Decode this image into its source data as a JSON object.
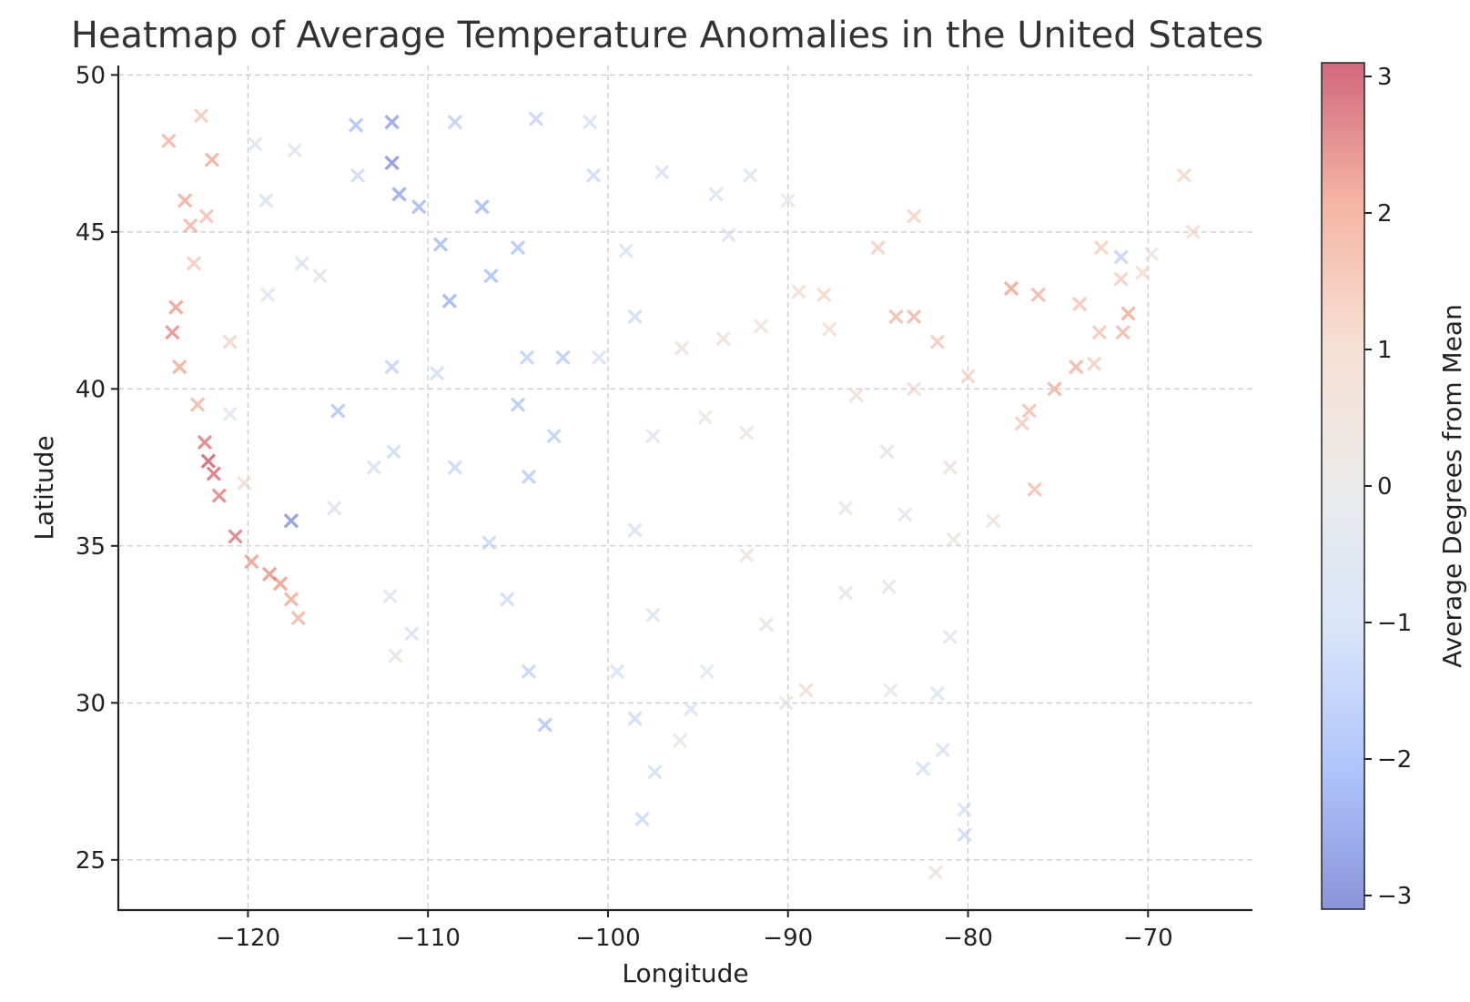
{
  "chart_data": {
    "type": "scatter",
    "marker": "x",
    "title": "Heatmap of Average Temperature Anomalies in the United States",
    "xlabel": "Longitude",
    "ylabel": "Latitude",
    "xlim": [
      -127.2,
      -64.2
    ],
    "ylim": [
      23.4,
      50.3
    ],
    "xticks": [
      -120,
      -110,
      -100,
      -90,
      -80,
      -70
    ],
    "xtick_labels": [
      "−120",
      "−110",
      "−100",
      "−90",
      "−80",
      "−70"
    ],
    "yticks": [
      25,
      30,
      35,
      40,
      45,
      50
    ],
    "ytick_labels": [
      "25",
      "30",
      "35",
      "40",
      "45",
      "50"
    ],
    "grid": true,
    "colormap": "coolwarm",
    "alpha": 0.6,
    "colorbar": {
      "label": "Average Degrees from Mean",
      "range": [
        -3.1,
        3.1
      ],
      "ticks": [
        -3,
        -2,
        -1,
        0,
        1,
        2,
        3
      ],
      "tick_labels": [
        "−3",
        "−2",
        "−1",
        "0",
        "1",
        "2",
        "3"
      ],
      "colors": [
        "#3b4cc0",
        "#7b9ff9",
        "#c0d4f5",
        "#dddddd",
        "#f2cbb7",
        "#ee8468",
        "#b40426"
      ]
    },
    "points": [
      {
        "lon": -124.4,
        "lat": 47.9,
        "value": 1.8
      },
      {
        "lon": -122.6,
        "lat": 48.7,
        "value": 1.4
      },
      {
        "lon": -122.0,
        "lat": 47.3,
        "value": 2.0
      },
      {
        "lon": -123.5,
        "lat": 46.0,
        "value": 2.0
      },
      {
        "lon": -123.2,
        "lat": 45.2,
        "value": 1.8
      },
      {
        "lon": -122.3,
        "lat": 45.5,
        "value": 1.6
      },
      {
        "lon": -123.0,
        "lat": 44.0,
        "value": 1.4
      },
      {
        "lon": -124.0,
        "lat": 42.6,
        "value": 2.2
      },
      {
        "lon": -124.2,
        "lat": 41.8,
        "value": 2.4
      },
      {
        "lon": -123.8,
        "lat": 40.7,
        "value": 2.0
      },
      {
        "lon": -122.8,
        "lat": 39.5,
        "value": 1.8
      },
      {
        "lon": -122.4,
        "lat": 38.3,
        "value": 2.6
      },
      {
        "lon": -122.2,
        "lat": 37.7,
        "value": 2.9
      },
      {
        "lon": -121.9,
        "lat": 37.3,
        "value": 2.7
      },
      {
        "lon": -121.6,
        "lat": 36.6,
        "value": 2.5
      },
      {
        "lon": -120.7,
        "lat": 35.3,
        "value": 2.6
      },
      {
        "lon": -119.8,
        "lat": 34.5,
        "value": 2.2
      },
      {
        "lon": -118.8,
        "lat": 34.1,
        "value": 2.3
      },
      {
        "lon": -118.2,
        "lat": 33.8,
        "value": 2.2
      },
      {
        "lon": -117.6,
        "lat": 33.3,
        "value": 2.0
      },
      {
        "lon": -117.2,
        "lat": 32.7,
        "value": 1.8
      },
      {
        "lon": -121.0,
        "lat": 41.5,
        "value": 1.2
      },
      {
        "lon": -121.0,
        "lat": 39.2,
        "value": -0.3
      },
      {
        "lon": -120.2,
        "lat": 37.0,
        "value": 1.0
      },
      {
        "lon": -119.6,
        "lat": 47.8,
        "value": -0.6
      },
      {
        "lon": -119.0,
        "lat": 46.0,
        "value": -0.8
      },
      {
        "lon": -117.4,
        "lat": 47.6,
        "value": -0.5
      },
      {
        "lon": -117.6,
        "lat": 35.8,
        "value": -2.8
      },
      {
        "lon": -118.9,
        "lat": 43.0,
        "value": -0.2
      },
      {
        "lon": -117.0,
        "lat": 44.0,
        "value": -0.9
      },
      {
        "lon": -116.0,
        "lat": 43.6,
        "value": -0.4
      },
      {
        "lon": -115.0,
        "lat": 39.3,
        "value": -1.8
      },
      {
        "lon": -115.2,
        "lat": 36.2,
        "value": -0.7
      },
      {
        "lon": -114.0,
        "lat": 48.4,
        "value": -1.9
      },
      {
        "lon": -113.9,
        "lat": 46.8,
        "value": -1.2
      },
      {
        "lon": -112.0,
        "lat": 48.5,
        "value": -2.5
      },
      {
        "lon": -112.0,
        "lat": 47.2,
        "value": -2.8
      },
      {
        "lon": -111.6,
        "lat": 46.2,
        "value": -2.4
      },
      {
        "lon": -110.5,
        "lat": 45.8,
        "value": -2.1
      },
      {
        "lon": -109.3,
        "lat": 44.6,
        "value": -2.0
      },
      {
        "lon": -108.8,
        "lat": 42.8,
        "value": -2.2
      },
      {
        "lon": -107.0,
        "lat": 45.8,
        "value": -2.1
      },
      {
        "lon": -106.5,
        "lat": 43.6,
        "value": -1.9
      },
      {
        "lon": -105.0,
        "lat": 44.5,
        "value": -1.8
      },
      {
        "lon": -104.5,
        "lat": 41.0,
        "value": -1.5
      },
      {
        "lon": -102.5,
        "lat": 41.0,
        "value": -1.6
      },
      {
        "lon": -105.0,
        "lat": 39.5,
        "value": -1.7
      },
      {
        "lon": -104.4,
        "lat": 37.2,
        "value": -1.6
      },
      {
        "lon": -103.0,
        "lat": 38.5,
        "value": -1.5
      },
      {
        "lon": -106.6,
        "lat": 35.1,
        "value": -1.3
      },
      {
        "lon": -105.6,
        "lat": 33.3,
        "value": -1.2
      },
      {
        "lon": -103.5,
        "lat": 29.3,
        "value": -1.8
      },
      {
        "lon": -104.4,
        "lat": 31.0,
        "value": -1.4
      },
      {
        "lon": -110.9,
        "lat": 32.2,
        "value": -0.9
      },
      {
        "lon": -111.8,
        "lat": 31.5,
        "value": 0.4
      },
      {
        "lon": -112.1,
        "lat": 33.4,
        "value": -0.5
      },
      {
        "lon": -112.0,
        "lat": 40.7,
        "value": -1.4
      },
      {
        "lon": -111.9,
        "lat": 38.0,
        "value": -1.2
      },
      {
        "lon": -113.0,
        "lat": 37.5,
        "value": -1.0
      },
      {
        "lon": -109.5,
        "lat": 40.5,
        "value": -1.1
      },
      {
        "lon": -108.5,
        "lat": 37.5,
        "value": -1.3
      },
      {
        "lon": -100.8,
        "lat": 46.8,
        "value": -1.2
      },
      {
        "lon": -99.0,
        "lat": 44.4,
        "value": -0.9
      },
      {
        "lon": -98.5,
        "lat": 42.3,
        "value": -1.2
      },
      {
        "lon": -100.5,
        "lat": 41.0,
        "value": -1.0
      },
      {
        "lon": -97.5,
        "lat": 38.5,
        "value": -0.5
      },
      {
        "lon": -98.5,
        "lat": 35.5,
        "value": -0.8
      },
      {
        "lon": -97.5,
        "lat": 32.8,
        "value": -0.6
      },
      {
        "lon": -99.5,
        "lat": 31.0,
        "value": -1.0
      },
      {
        "lon": -98.5,
        "lat": 29.5,
        "value": -1.2
      },
      {
        "lon": -97.4,
        "lat": 27.8,
        "value": -1.1
      },
      {
        "lon": -98.1,
        "lat": 26.3,
        "value": -1.3
      },
      {
        "lon": -95.4,
        "lat": 29.8,
        "value": -0.6
      },
      {
        "lon": -96.0,
        "lat": 28.8,
        "value": 0.2
      },
      {
        "lon": -94.5,
        "lat": 31.0,
        "value": -0.3
      },
      {
        "lon": -93.3,
        "lat": 44.9,
        "value": -0.7
      },
      {
        "lon": -92.1,
        "lat": 46.8,
        "value": -0.5
      },
      {
        "lon": -94.0,
        "lat": 46.2,
        "value": -0.6
      },
      {
        "lon": -95.9,
        "lat": 41.3,
        "value": 0.5
      },
      {
        "lon": -93.6,
        "lat": 41.6,
        "value": 0.7
      },
      {
        "lon": -91.5,
        "lat": 42.0,
        "value": 0.6
      },
      {
        "lon": -94.6,
        "lat": 39.1,
        "value": 0.2
      },
      {
        "lon": -92.3,
        "lat": 38.6,
        "value": 0.3
      },
      {
        "lon": -92.3,
        "lat": 34.7,
        "value": 0.5
      },
      {
        "lon": -91.2,
        "lat": 32.5,
        "value": 0.3
      },
      {
        "lon": -90.1,
        "lat": 30.0,
        "value": 0.2
      },
      {
        "lon": -89.0,
        "lat": 30.4,
        "value": 0.8
      },
      {
        "lon": -87.7,
        "lat": 41.9,
        "value": 1.0
      },
      {
        "lon": -88.0,
        "lat": 43.0,
        "value": 1.1
      },
      {
        "lon": -89.4,
        "lat": 43.1,
        "value": 1.0
      },
      {
        "lon": -86.2,
        "lat": 39.8,
        "value": 0.8
      },
      {
        "lon": -86.8,
        "lat": 36.2,
        "value": 0.3
      },
      {
        "lon": -86.8,
        "lat": 33.5,
        "value": -0.2
      },
      {
        "lon": -84.4,
        "lat": 33.7,
        "value": -0.4
      },
      {
        "lon": -84.3,
        "lat": 30.4,
        "value": 0.1
      },
      {
        "lon": -85.0,
        "lat": 44.5,
        "value": 1.3
      },
      {
        "lon": -84.0,
        "lat": 42.3,
        "value": 1.7
      },
      {
        "lon": -83.0,
        "lat": 42.3,
        "value": 1.8
      },
      {
        "lon": -83.0,
        "lat": 40.0,
        "value": 0.9
      },
      {
        "lon": -84.5,
        "lat": 38.0,
        "value": 0.4
      },
      {
        "lon": -83.5,
        "lat": 36.0,
        "value": -0.3
      },
      {
        "lon": -81.7,
        "lat": 41.5,
        "value": 1.4
      },
      {
        "lon": -80.0,
        "lat": 40.4,
        "value": 1.2
      },
      {
        "lon": -81.0,
        "lat": 37.5,
        "value": 0.4
      },
      {
        "lon": -80.8,
        "lat": 35.2,
        "value": 0.2
      },
      {
        "lon": -81.0,
        "lat": 32.1,
        "value": -0.3
      },
      {
        "lon": -81.7,
        "lat": 30.3,
        "value": -0.6
      },
      {
        "lon": -81.4,
        "lat": 28.5,
        "value": -0.8
      },
      {
        "lon": -82.5,
        "lat": 27.9,
        "value": -1.0
      },
      {
        "lon": -80.2,
        "lat": 25.8,
        "value": -1.2
      },
      {
        "lon": -81.8,
        "lat": 24.6,
        "value": 0.4
      },
      {
        "lon": -80.2,
        "lat": 26.6,
        "value": -1.0
      },
      {
        "lon": -77.6,
        "lat": 43.2,
        "value": 2.1
      },
      {
        "lon": -76.1,
        "lat": 43.0,
        "value": 1.8
      },
      {
        "lon": -73.8,
        "lat": 42.7,
        "value": 1.5
      },
      {
        "lon": -75.2,
        "lat": 40.0,
        "value": 1.9
      },
      {
        "lon": -74.0,
        "lat": 40.7,
        "value": 1.8
      },
      {
        "lon": -76.6,
        "lat": 39.3,
        "value": 1.6
      },
      {
        "lon": -77.0,
        "lat": 38.9,
        "value": 1.4
      },
      {
        "lon": -76.3,
        "lat": 36.8,
        "value": 1.6
      },
      {
        "lon": -78.6,
        "lat": 35.8,
        "value": 0.6
      },
      {
        "lon": -71.1,
        "lat": 42.4,
        "value": 2.0
      },
      {
        "lon": -71.4,
        "lat": 41.8,
        "value": 1.7
      },
      {
        "lon": -72.7,
        "lat": 41.8,
        "value": 1.5
      },
      {
        "lon": -72.6,
        "lat": 44.5,
        "value": 1.2
      },
      {
        "lon": -71.5,
        "lat": 43.5,
        "value": 1.3
      },
      {
        "lon": -70.3,
        "lat": 43.7,
        "value": 0.9
      },
      {
        "lon": -69.8,
        "lat": 44.3,
        "value": 0.3
      },
      {
        "lon": -68.0,
        "lat": 46.8,
        "value": 1.1
      },
      {
        "lon": -67.5,
        "lat": 45.0,
        "value": 1.0
      },
      {
        "lon": -71.5,
        "lat": 44.2,
        "value": -1.4
      },
      {
        "lon": -73.0,
        "lat": 40.8,
        "value": 1.3
      },
      {
        "lon": -83.0,
        "lat": 45.5,
        "value": 1.2
      },
      {
        "lon": -90.0,
        "lat": 46.0,
        "value": -0.3
      },
      {
        "lon": -97.0,
        "lat": 46.9,
        "value": -0.8
      },
      {
        "lon": -101.0,
        "lat": 48.5,
        "value": -1.0
      },
      {
        "lon": -104.0,
        "lat": 48.6,
        "value": -1.4
      },
      {
        "lon": -108.5,
        "lat": 48.5,
        "value": -1.5
      }
    ]
  }
}
